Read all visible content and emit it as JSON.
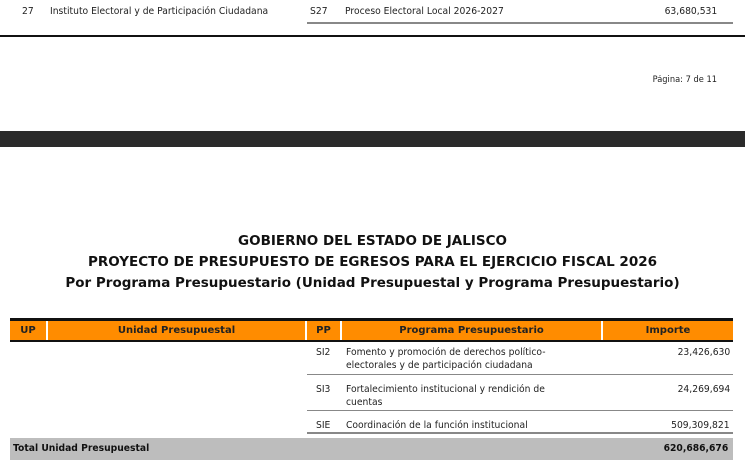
{
  "prev_row": {
    "up": "27",
    "unidad": "Instituto Electoral y de Participación Ciudadana",
    "pp": "S27",
    "programa": "Proceso Electoral Local 2026-2027",
    "importe": "63,680,531"
  },
  "page_label": "Página: 7 de 11",
  "titles": [
    "GOBIERNO DEL ESTADO DE JALISCO",
    "PROYECTO DE PRESUPUESTO DE EGRESOS PARA EL EJERCICIO FISCAL 2026",
    "Por Programa Presupuestario (Unidad Presupuestal y Programa Presupuestario)"
  ],
  "headers": {
    "up": "UP",
    "unidad": "Unidad Presupuestal",
    "pp": "PP",
    "programa": "Programa Presupuestario",
    "importe": "Importe"
  },
  "rows": [
    {
      "pp": "SI2",
      "programa_l1": "Fomento y promoción de derechos político-",
      "programa_l2": "electorales y de participación ciudadana",
      "importe": "23,426,630"
    },
    {
      "pp": "SI3",
      "programa_l1": "Fortalecimiento institucional y rendición de",
      "programa_l2": "cuentas",
      "importe": "24,269,694"
    },
    {
      "pp": "SIE",
      "programa_l1": "Coordinación de la función institucional",
      "programa_l2": "",
      "importe": "509,309,821"
    }
  ],
  "total": {
    "label": "Total Unidad Presupuestal",
    "importe": "620,686,676"
  },
  "colors": {
    "header": "#ff8c00",
    "total": "#bdbdbd",
    "band": "#2b2b2b"
  }
}
